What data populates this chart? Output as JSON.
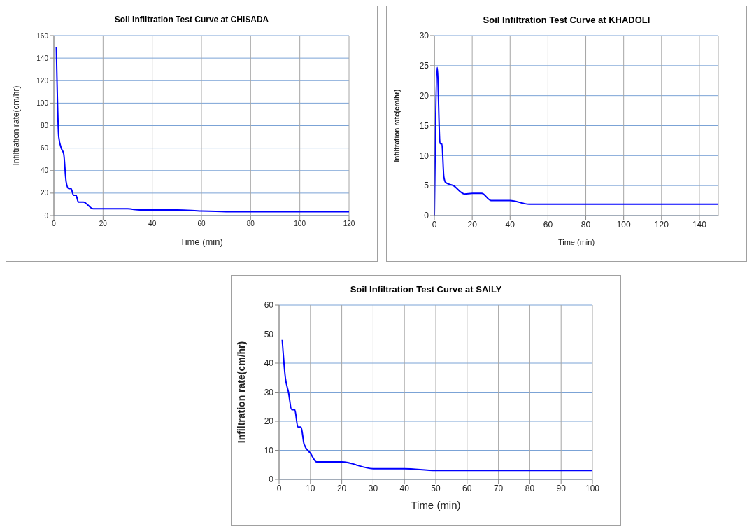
{
  "chart_data": [
    {
      "type": "line",
      "title": "Soil Infiltration Test Curve at CHISADA",
      "xlabel": "Time (min)",
      "ylabel": "Infiltration rate(cm/hr)",
      "x": [
        1,
        2,
        3,
        4,
        5,
        6,
        7,
        8,
        9,
        10,
        12,
        16,
        20,
        30,
        35,
        40,
        50,
        60,
        70,
        80,
        100,
        120
      ],
      "series": [
        {
          "color": "#0000ff",
          "values": [
            150,
            70,
            60,
            55,
            30,
            24,
            24,
            18,
            18,
            12,
            12,
            6,
            6,
            6,
            5,
            5,
            5,
            4,
            3.5,
            3.5,
            3.5,
            3.5
          ]
        }
      ],
      "xlim": [
        0,
        120
      ],
      "xticks": [
        0,
        20,
        40,
        60,
        80,
        100,
        120
      ],
      "ylim": [
        0,
        160
      ],
      "yticks": [
        0,
        20,
        40,
        60,
        80,
        100,
        120,
        140,
        160
      ],
      "grid": true,
      "marker": "none",
      "line_style": "solid",
      "legend": false
    },
    {
      "type": "line",
      "title": "Soil Infiltration Test Curve at KHADOLI",
      "xlabel": "Time (min)",
      "ylabel": "Infiltration rate(cm/hr)",
      "x": [
        0,
        1.5,
        3,
        4,
        5,
        6,
        10,
        16,
        20,
        25,
        30,
        40,
        50,
        60,
        150
      ],
      "series": [
        {
          "color": "#0000ff",
          "values": [
            0,
            24.7,
            12,
            12,
            6.5,
            5.5,
            5,
            3.6,
            3.7,
            3.7,
            2.5,
            2.5,
            1.9,
            1.9,
            1.9
          ]
        }
      ],
      "xlim": [
        0,
        150
      ],
      "xticks": [
        0,
        20,
        40,
        60,
        80,
        100,
        120,
        140
      ],
      "ylim": [
        0,
        30
      ],
      "yticks": [
        0,
        5,
        10,
        15,
        20,
        25,
        30
      ],
      "grid": true,
      "marker": "none",
      "line_style": "solid",
      "legend": false
    },
    {
      "type": "line",
      "title": "Soil Infiltration Test Curve at SAILY",
      "xlabel": "Time (min)",
      "ylabel": "Infiltration rate(cm/hr)",
      "x": [
        1,
        2,
        3,
        4,
        5,
        6,
        7,
        8,
        10,
        12,
        14,
        20,
        30,
        40,
        50,
        60,
        100
      ],
      "series": [
        {
          "color": "#0000ff",
          "values": [
            48,
            35,
            30,
            24,
            24,
            18,
            18,
            12,
            9,
            6,
            6,
            6,
            3.7,
            3.7,
            3.1,
            3.1,
            3.1
          ]
        }
      ],
      "xlim": [
        0,
        100
      ],
      "xticks": [
        0,
        10,
        20,
        30,
        40,
        50,
        60,
        70,
        80,
        90,
        100
      ],
      "ylim": [
        0,
        60
      ],
      "yticks": [
        0,
        10,
        20,
        30,
        40,
        50,
        60
      ],
      "grid": true,
      "marker": "none",
      "line_style": "solid",
      "legend": false
    }
  ]
}
